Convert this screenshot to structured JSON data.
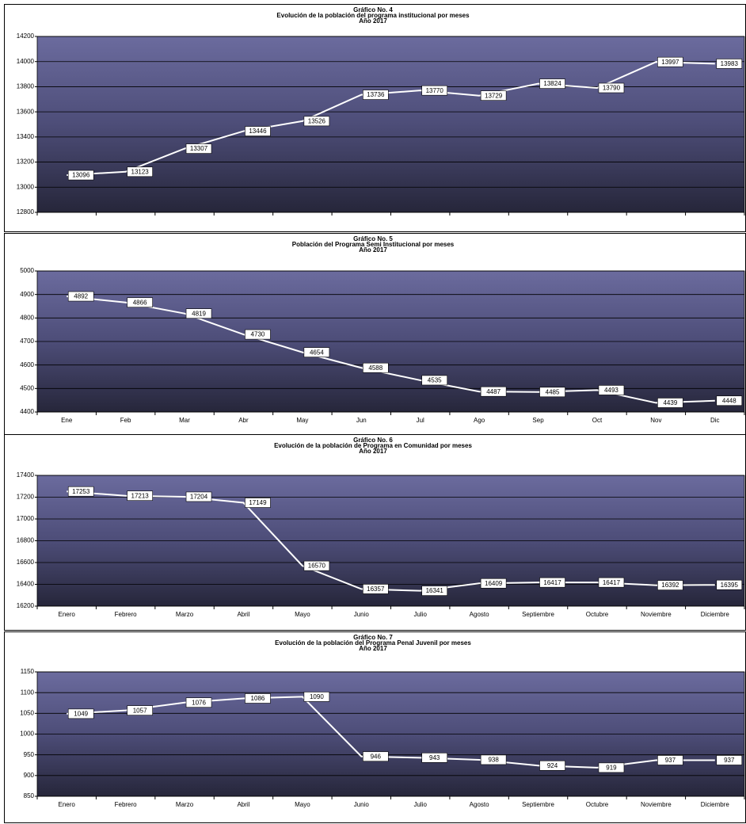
{
  "chart_data": [
    {
      "type": "line",
      "title": "Gráfico No. 4",
      "subtitle": "Evolución de la población del programa institucional por meses",
      "caption": "Año 2017",
      "series": [
        {
          "color": "#ffffff",
          "values": [
            13096,
            13123,
            13307,
            13446,
            13526,
            13736,
            13770,
            13729,
            13824,
            13790,
            13997,
            13983
          ]
        }
      ],
      "ylim": [
        12800,
        14200
      ],
      "yticks": [
        12800,
        13000,
        13200,
        13400,
        13600,
        13800,
        14000,
        14200
      ],
      "grid": true
    },
    {
      "type": "line",
      "title": "Gráfico No. 5",
      "subtitle": "Población del Programa Semi Institucional por meses",
      "caption": "Año 2017",
      "categories": [
        "Ene",
        "Feb",
        "Mar",
        "Abr",
        "May",
        "Jun",
        "Jul",
        "Ago",
        "Sep",
        "Oct",
        "Nov",
        "Dic"
      ],
      "series": [
        {
          "color": "#ffffff",
          "values": [
            4892,
            4866,
            4819,
            4730,
            4654,
            4588,
            4535,
            4487,
            4485,
            4493,
            4439,
            4448
          ]
        }
      ],
      "ylim": [
        4400,
        5000
      ],
      "yticks": [
        4400,
        4500,
        4600,
        4700,
        4800,
        4900,
        5000
      ],
      "grid": true
    },
    {
      "type": "line",
      "title": "Gráfico No. 6",
      "subtitle": "Evolución de la población de Programa en Comunidad por meses",
      "caption": "Año 2017",
      "categories": [
        "Enero",
        "Febrero",
        "Marzo",
        "Abril",
        "Mayo",
        "Junio",
        "Julio",
        "Agosto",
        "Septiembre",
        "Octubre",
        "Noviembre",
        "Diciembre"
      ],
      "series": [
        {
          "color": "#ffffff",
          "values": [
            17253,
            17213,
            17204,
            17149,
            16570,
            16357,
            16341,
            16409,
            16417,
            16417,
            16392,
            16395
          ]
        }
      ],
      "ylim": [
        16200,
        17400
      ],
      "yticks": [
        16200,
        16400,
        16600,
        16800,
        17000,
        17200,
        17400
      ],
      "grid": true
    },
    {
      "type": "line",
      "title": "Gráfico No. 7",
      "subtitle": "Evolución de la población del Programa Penal Juvenil por meses",
      "caption": "Año 2017",
      "categories": [
        "Enero",
        "Febrero",
        "Marzo",
        "Abril",
        "Mayo",
        "Junio",
        "Julio",
        "Agosto",
        "Septiembre",
        "Octubre",
        "Noviembre",
        "Diciembre"
      ],
      "series": [
        {
          "color": "#ffffff",
          "values": [
            1049,
            1057,
            1076,
            1086,
            1090,
            946,
            943,
            938,
            924,
            919,
            937,
            937
          ]
        }
      ],
      "ylim": [
        850,
        1150
      ],
      "yticks": [
        850,
        900,
        950,
        1000,
        1050,
        1100,
        1150
      ],
      "grid": true
    }
  ]
}
